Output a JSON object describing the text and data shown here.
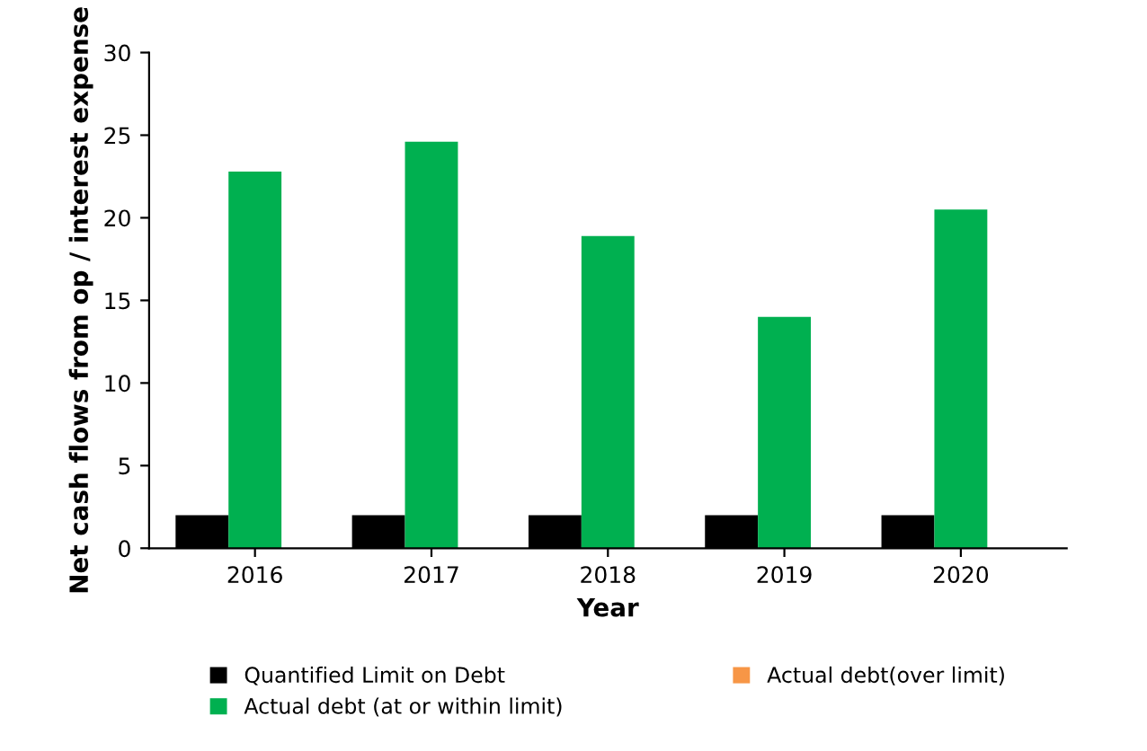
{
  "chart_data": {
    "type": "bar",
    "xlabel": "Year",
    "ylabel": "Net cash flows from op / interest expense",
    "categories": [
      "2016",
      "2017",
      "2018",
      "2019",
      "2020"
    ],
    "series": [
      {
        "name": "Quantified Limit on Debt",
        "color": "#000000",
        "values": [
          2,
          2,
          2,
          2,
          2
        ]
      },
      {
        "name": "Actual debt (at or within limit)",
        "color": "#00b050",
        "values": [
          22.8,
          24.6,
          18.9,
          14.0,
          20.5
        ]
      },
      {
        "name": "Actual debt(over limit)",
        "color": "#f79646",
        "values": [
          null,
          null,
          null,
          null,
          null
        ]
      }
    ],
    "ylim": [
      0,
      30
    ],
    "yticks": [
      0,
      5,
      10,
      15,
      20,
      25,
      30
    ],
    "grid": false,
    "legend": "bottom"
  }
}
